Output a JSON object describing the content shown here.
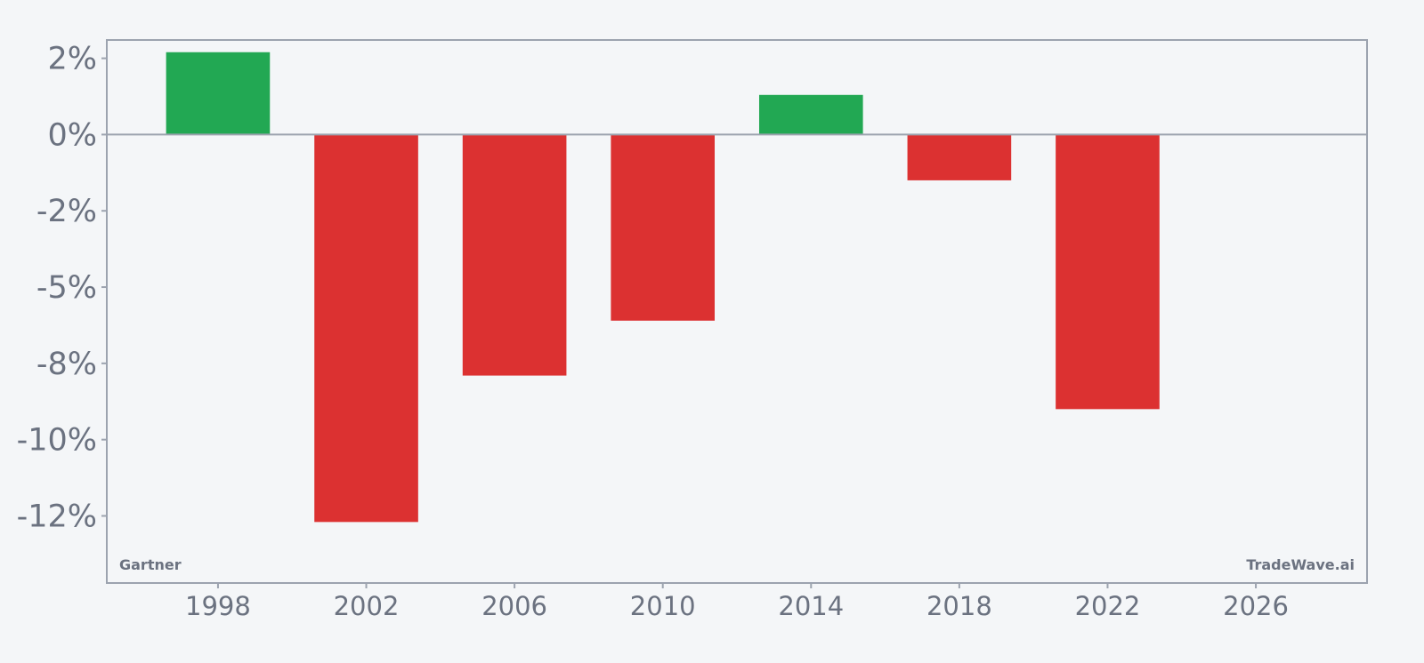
{
  "chart_data": {
    "type": "bar",
    "x": [
      1998,
      2002,
      2006,
      2010,
      2014,
      2018,
      2022
    ],
    "values": [
      2.7,
      -12.7,
      -7.9,
      -6.1,
      1.3,
      -1.5,
      -9.0
    ],
    "xlim": [
      1995,
      2029
    ],
    "ylim": [
      -14.7,
      3.1
    ],
    "xticks": [
      1998,
      2002,
      2006,
      2010,
      2014,
      2018,
      2022,
      2026
    ],
    "xtick_labels": [
      "1998",
      "2002",
      "2006",
      "2010",
      "2014",
      "2018",
      "2022",
      "2026"
    ],
    "yticks": [
      2.5,
      0,
      -2.5,
      -5,
      -7.5,
      -10,
      -12.5
    ],
    "ytick_labels": [
      "2%",
      "0%",
      "-2%",
      "-5%",
      "-8%",
      "-10%",
      "-12%"
    ],
    "bar_width": 2.8,
    "title": "",
    "xlabel": "",
    "ylabel": "",
    "grid": false,
    "colors": {
      "positive": "#22a853",
      "negative": "#dc3131",
      "axis": "#9ca3af",
      "text": "#6b7280",
      "background": "#f4f6f8"
    }
  },
  "watermarks": {
    "left": "Gartner",
    "right": "TradeWave.ai"
  }
}
